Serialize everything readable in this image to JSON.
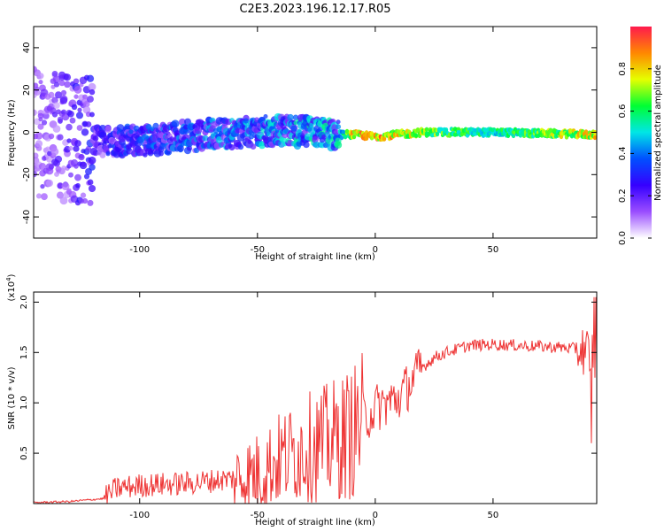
{
  "figure_title": "C2E3.2023.196.12.17.R05",
  "chart_data": [
    {
      "type": "heatmap",
      "title": "",
      "xlabel": "Height of straight line (km)",
      "ylabel": "Frequency (Hz)",
      "xlim": [
        -145,
        94
      ],
      "ylim": [
        -50,
        50
      ],
      "xticks": [
        -100,
        -50,
        0,
        50
      ],
      "yticks": [
        -40,
        -20,
        0,
        20,
        40
      ],
      "colorbar": {
        "label": "Normalized spectral amplitude",
        "range": [
          0,
          1
        ],
        "ticks": [
          0.0,
          0.2,
          0.4,
          0.6,
          0.8
        ],
        "colormap": [
          "#ffffff",
          "#9a4dff",
          "#3500ff",
          "#0050ff",
          "#00e6e6",
          "#00ff33",
          "#e6ff00",
          "#ff8800",
          "#ff1a4d"
        ]
      },
      "band": {
        "description_points": [
          {
            "x": -145,
            "center_freq": 0,
            "amplitude": 0.15
          },
          {
            "x": -125,
            "center_freq": -4,
            "amplitude": 0.25
          },
          {
            "x": -100,
            "center_freq": -4,
            "amplitude": 0.35
          },
          {
            "x": -70,
            "center_freq": -1,
            "amplitude": 0.4
          },
          {
            "x": -40,
            "center_freq": 1,
            "amplitude": 0.45
          },
          {
            "x": -15,
            "center_freq": -1,
            "amplitude": 0.5
          },
          {
            "x": -10,
            "center_freq": -1,
            "amplitude": 0.85
          },
          {
            "x": 0,
            "center_freq": -2,
            "amplitude": 0.95
          },
          {
            "x": 20,
            "center_freq": 0,
            "amplitude": 0.75
          },
          {
            "x": 50,
            "center_freq": 0,
            "amplitude": 0.6
          },
          {
            "x": 92,
            "center_freq": -1,
            "amplitude": 0.85
          }
        ]
      }
    },
    {
      "type": "line",
      "title": "",
      "xlabel": "Height of straight line (km)",
      "ylabel": "SNR (10 * v/v)",
      "y_multiplier_label": "(x10",
      "y_multiplier_exp": "4",
      "y_multiplier_close": ")",
      "xlim": [
        -145,
        94
      ],
      "ylim": [
        0,
        2.1
      ],
      "xticks": [
        -100,
        -50,
        0,
        50
      ],
      "yticks": [
        0.5,
        1.0,
        1.5,
        2.0
      ],
      "series": [
        {
          "color": "#ee3333",
          "trend_x": [
            -145,
            -130,
            -115,
            -110,
            -100,
            -80,
            -60,
            -50,
            -40,
            -30,
            -20,
            -10,
            0,
            10,
            15,
            20,
            25,
            30,
            40,
            50,
            60,
            70,
            80,
            90,
            94
          ],
          "trend_y": [
            0.01,
            0.02,
            0.05,
            0.15,
            0.18,
            0.2,
            0.25,
            0.3,
            0.45,
            0.55,
            0.6,
            0.7,
            0.95,
            1.05,
            1.2,
            1.35,
            1.45,
            1.5,
            1.57,
            1.58,
            1.57,
            1.56,
            1.55,
            1.52,
            1.45
          ]
        }
      ]
    }
  ],
  "x_tick_labels": [
    "-100",
    "-50",
    "0",
    "50"
  ],
  "heatmap_y_tick_labels": [
    "-40",
    "-20",
    "0",
    "20",
    "40"
  ],
  "snr_y_tick_labels": [
    "0.5",
    "1.0",
    "1.5",
    "2.0"
  ],
  "colorbar_tick_labels": [
    "0.0",
    "0.2",
    "0.4",
    "0.6",
    "0.8"
  ]
}
